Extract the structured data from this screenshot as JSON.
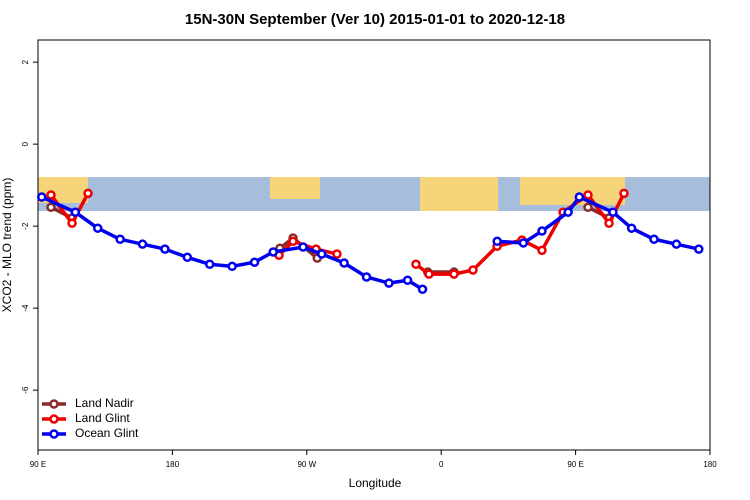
{
  "chart_data": {
    "type": "line",
    "title": "15N-30N September (Ver 10)   2015-01-01 to 2020-12-18",
    "x_label": "Longitude",
    "y_label": "XCO2 - MLO trend (ppm)",
    "xlim": [
      90,
      540
    ],
    "xticks": [
      {
        "value": 90,
        "label": "90 E"
      },
      180,
      {
        "value": 270,
        "label": "90 W"
      },
      {
        "value": 360,
        "label": "0"
      },
      {
        "value": 450,
        "label": "90 E"
      },
      {
        "value": 540,
        "label": "180"
      }
    ],
    "ylim": [
      -7.46,
      2.54
    ],
    "yticks": [
      2,
      0,
      -2,
      -4,
      -6
    ],
    "legend": "bottom-left",
    "series": [
      {
        "name": "Land Nadir",
        "color": "#8b2a2a",
        "x": [
          98.7,
          112.8,
          180,
          252,
          260.8,
          277,
          310,
          351,
          368.6,
          420,
          458.3,
          472.4
        ],
        "values": [
          -1.54,
          -1.8,
          null,
          -2.54,
          -2.29,
          -2.78,
          null,
          -3.12,
          -3.12,
          null,
          -1.54,
          -1.8
        ]
      },
      {
        "name": "Land Glint",
        "color": "#ee0000",
        "x": [
          98.7,
          112.8,
          123.5,
          180,
          251.4,
          260.8,
          276.2,
          290.2,
          320,
          343.1,
          351.8,
          368.6,
          381.3,
          397.4,
          414.1,
          427.5,
          441.6,
          458.3,
          472.4,
          482.4
        ],
        "values": [
          -1.24,
          -1.93,
          -1.2,
          null,
          -2.71,
          -2.37,
          -2.56,
          -2.68,
          null,
          -2.93,
          -3.17,
          -3.17,
          -3.07,
          -2.49,
          -2.34,
          -2.59,
          -1.66,
          -1.24,
          -1.93,
          -1.2
        ]
      },
      {
        "name": "Ocean Glint",
        "color": "#0000ee",
        "x": [
          92.5,
          115,
          130,
          145,
          160,
          175,
          190,
          205,
          220,
          235,
          247.5,
          267.5,
          280,
          295,
          310,
          325,
          337.5,
          347.5,
          372.5,
          397.5,
          415,
          427.5,
          445,
          452.5,
          475,
          487.5,
          502.5,
          517.5,
          532.5
        ],
        "values": [
          -1.29,
          -1.66,
          -2.05,
          -2.32,
          -2.44,
          -2.56,
          -2.76,
          -2.93,
          -2.98,
          -2.88,
          -2.63,
          -2.51,
          -2.68,
          -2.9,
          -3.24,
          -3.39,
          -3.32,
          -3.54,
          null,
          -2.37,
          -2.41,
          -2.12,
          -1.66,
          -1.29,
          -1.66,
          -2.05,
          -2.32,
          -2.44,
          -2.56
        ]
      }
    ]
  }
}
